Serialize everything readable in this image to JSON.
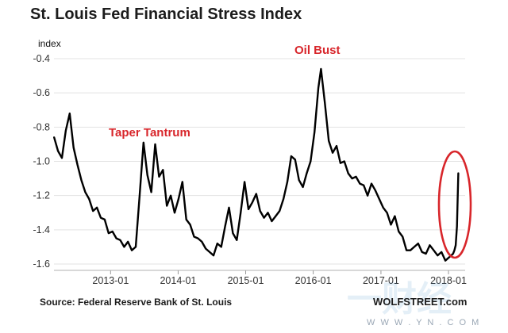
{
  "chart_data": {
    "type": "line",
    "title": "St. Louis Fed Financial Stress Index",
    "ylabel": "index",
    "xlabel": "",
    "x_ticks": [
      "2013-01",
      "2014-01",
      "2015-01",
      "2016-01",
      "2017-01",
      "2018-01"
    ],
    "y_ticks": [
      "-0.4",
      "-0.6",
      "-0.8",
      "-1.0",
      "-1.2",
      "-1.4",
      "-1.6"
    ],
    "ylim": [
      -1.6,
      -0.4
    ],
    "xlim": [
      "2012-03",
      "2018-04"
    ],
    "grid": "horizontal",
    "line_color": "#000000",
    "series": [
      {
        "name": "",
        "x": [
          "2012-03-02",
          "2012-03-23",
          "2012-04-13",
          "2012-05-04",
          "2012-05-25",
          "2012-06-15",
          "2012-07-06",
          "2012-07-27",
          "2012-08-17",
          "2012-09-07",
          "2012-09-28",
          "2012-10-19",
          "2012-11-09",
          "2012-11-30",
          "2012-12-21",
          "2013-01-11",
          "2013-02-01",
          "2013-02-22",
          "2013-03-15",
          "2013-04-05",
          "2013-04-26",
          "2013-05-17",
          "2013-06-07",
          "2013-06-28",
          "2013-07-19",
          "2013-08-09",
          "2013-08-30",
          "2013-09-20",
          "2013-10-11",
          "2013-11-01",
          "2013-11-22",
          "2013-12-13",
          "2014-01-03",
          "2014-01-24",
          "2014-02-14",
          "2014-03-07",
          "2014-03-28",
          "2014-04-18",
          "2014-05-09",
          "2014-05-30",
          "2014-06-20",
          "2014-07-11",
          "2014-08-01",
          "2014-08-22",
          "2014-09-12",
          "2014-10-03",
          "2014-10-24",
          "2014-11-14",
          "2014-12-05",
          "2014-12-26",
          "2015-01-16",
          "2015-02-06",
          "2015-02-27",
          "2015-03-20",
          "2015-04-10",
          "2015-05-01",
          "2015-05-22",
          "2015-06-12",
          "2015-07-03",
          "2015-07-24",
          "2015-08-14",
          "2015-09-04",
          "2015-09-25",
          "2015-10-16",
          "2015-11-06",
          "2015-11-27",
          "2015-12-18",
          "2016-01-08",
          "2016-01-29",
          "2016-02-12",
          "2016-03-04",
          "2016-03-25",
          "2016-04-15",
          "2016-05-06",
          "2016-05-27",
          "2016-06-17",
          "2016-07-08",
          "2016-07-29",
          "2016-08-19",
          "2016-09-09",
          "2016-09-30",
          "2016-10-21",
          "2016-11-11",
          "2016-12-02",
          "2016-12-23",
          "2017-01-13",
          "2017-02-03",
          "2017-02-24",
          "2017-03-17",
          "2017-04-07",
          "2017-04-28",
          "2017-05-19",
          "2017-06-09",
          "2017-06-30",
          "2017-07-21",
          "2017-08-11",
          "2017-09-01",
          "2017-09-22",
          "2017-10-13",
          "2017-11-03",
          "2017-11-24",
          "2017-12-15",
          "2018-01-05",
          "2018-01-26",
          "2018-02-02",
          "2018-02-09",
          "2018-02-16",
          "2018-02-23"
        ],
        "values": [
          -0.86,
          -0.94,
          -0.98,
          -0.82,
          -0.72,
          -0.92,
          -1.02,
          -1.11,
          -1.18,
          -1.22,
          -1.29,
          -1.27,
          -1.33,
          -1.34,
          -1.42,
          -1.41,
          -1.45,
          -1.46,
          -1.5,
          -1.47,
          -1.52,
          -1.5,
          -1.2,
          -0.89,
          -1.08,
          -1.18,
          -0.9,
          -1.09,
          -1.05,
          -1.26,
          -1.2,
          -1.3,
          -1.22,
          -1.12,
          -1.34,
          -1.37,
          -1.44,
          -1.45,
          -1.47,
          -1.51,
          -1.53,
          -1.55,
          -1.48,
          -1.5,
          -1.38,
          -1.27,
          -1.42,
          -1.46,
          -1.3,
          -1.12,
          -1.28,
          -1.24,
          -1.19,
          -1.29,
          -1.33,
          -1.3,
          -1.35,
          -1.32,
          -1.29,
          -1.22,
          -1.12,
          -0.97,
          -0.99,
          -1.11,
          -1.15,
          -1.07,
          -1.0,
          -0.83,
          -0.57,
          -0.46,
          -0.66,
          -0.88,
          -0.95,
          -0.91,
          -1.01,
          -1.0,
          -1.07,
          -1.1,
          -1.09,
          -1.13,
          -1.14,
          -1.2,
          -1.13,
          -1.17,
          -1.22,
          -1.27,
          -1.3,
          -1.37,
          -1.32,
          -1.41,
          -1.44,
          -1.52,
          -1.52,
          -1.5,
          -1.48,
          -1.53,
          -1.54,
          -1.49,
          -1.52,
          -1.55,
          -1.53,
          -1.58,
          -1.56,
          -1.54,
          -1.52,
          -1.49,
          -1.38,
          -1.07
        ]
      }
    ],
    "annotations": [
      "Taper Tantrum",
      "Oil Bust"
    ]
  },
  "footer": {
    "source": "Source: Federal Reserve Bank of St. Louis",
    "credit": "WOLFSTREET.com"
  },
  "watermark": {
    "text": "一财经",
    "url": "W W W . Y N . C O M"
  },
  "colors": {
    "line": "#000000",
    "annotation": "#d8262b",
    "grid": "#e3e3e3",
    "watermark": "#2d7fc2"
  }
}
